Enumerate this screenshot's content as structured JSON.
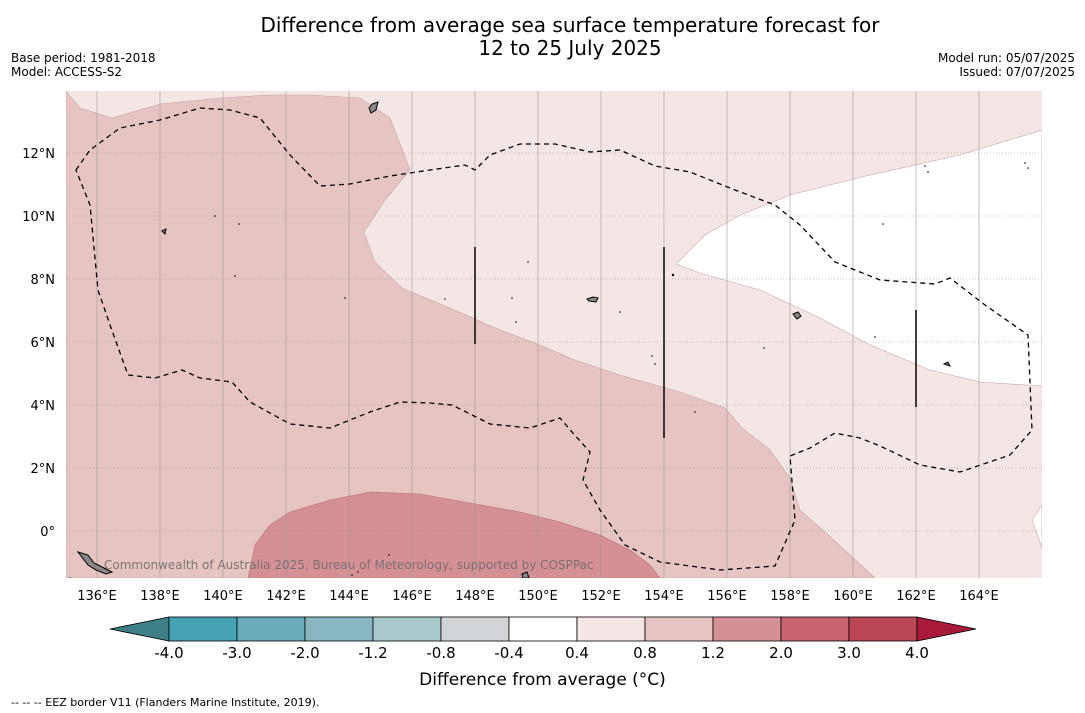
{
  "title": {
    "line1": "Difference from average sea surface temperature forecast for",
    "line2": "12 to 25 July 2025"
  },
  "meta": {
    "base_period": "Base period: 1981-2018",
    "model": "Model: ACCESS-S2",
    "model_run": "Model run: 05/07/2025",
    "issued": "Issued: 07/07/2025"
  },
  "map": {
    "lat_ticks": [
      "12°N",
      "10°N",
      "8°N",
      "6°N",
      "4°N",
      "2°N",
      "0°"
    ],
    "lon_ticks": [
      "136°E",
      "138°E",
      "140°E",
      "142°E",
      "144°E",
      "146°E",
      "148°E",
      "150°E",
      "152°E",
      "154°E",
      "156°E",
      "158°E",
      "160°E",
      "162°E",
      "164°E"
    ],
    "credit": "Commonwealth of Australia 2025, Bureau of Meteorology, supported by COSPPac"
  },
  "colorbar": {
    "ticks": [
      "-4.0",
      "-3.0",
      "-2.0",
      "-1.2",
      "-0.8",
      "-0.4",
      "0.4",
      "0.8",
      "1.2",
      "2.0",
      "3.0",
      "4.0"
    ],
    "colors": {
      "under": "#3d7f86",
      "bins": [
        "#46a1b5",
        "#6aacbc",
        "#89b7c1",
        "#a9c8ca",
        "#d2d5d7",
        "#ffffff",
        "#f4e6e5",
        "#e6c4c1",
        "#d59096",
        "#c7646d",
        "#bb4755"
      ],
      "over": "#a8193a"
    },
    "label": "Difference from average (°C)"
  },
  "footnote": "-- -- -- EEZ border V11 (Flanders Marine Institute, 2019)."
}
